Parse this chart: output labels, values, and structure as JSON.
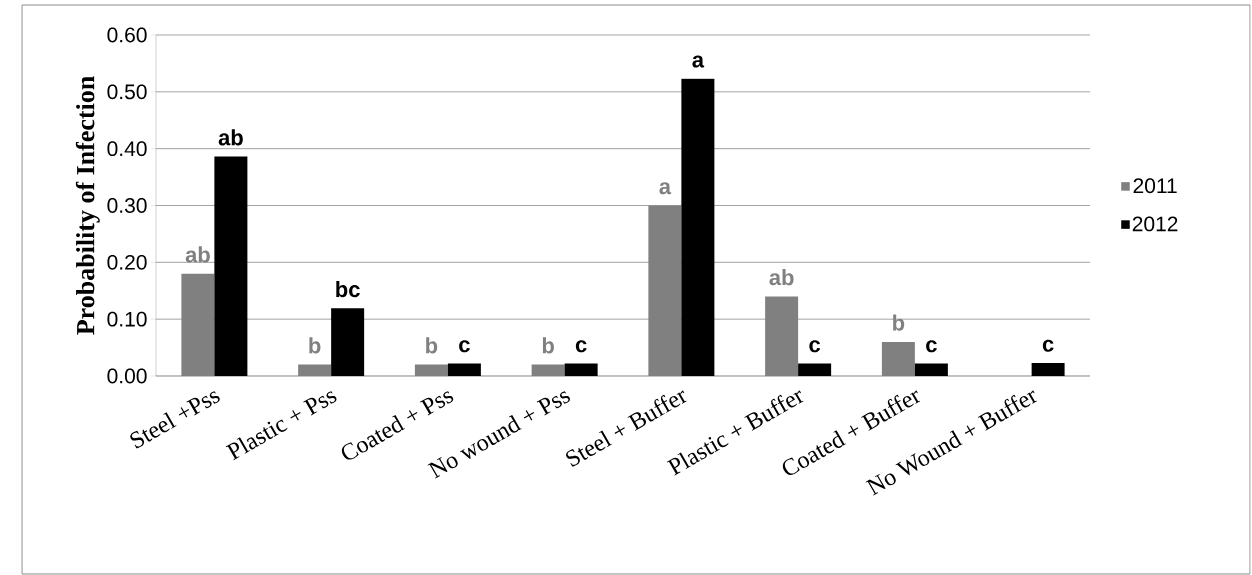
{
  "chart_data": {
    "type": "bar",
    "ylabel": "Probability of Infection",
    "categories": [
      "Steel +Pss",
      "Plastic + Pss",
      "Coated + Pss",
      "No wound + Pss",
      "Steel + Buffer",
      "Plastic + Buffer",
      "Coated + Buffer",
      "No Wound + Buffer"
    ],
    "series": [
      {
        "name": "2011",
        "color": "#808080",
        "values": [
          0.18,
          0.02,
          0.02,
          0.02,
          0.3,
          0.14,
          0.06,
          0
        ],
        "value_labels": [
          "ab",
          "b",
          "b",
          "b",
          "a",
          "ab",
          "b",
          null
        ]
      },
      {
        "name": "2012",
        "color": "#000000",
        "values": [
          0.386,
          0.119,
          0.022,
          0.022,
          0.523,
          0.022,
          0.022,
          0.023
        ],
        "value_labels": [
          "ab",
          "bc",
          "c",
          "c",
          "a",
          "c",
          "c",
          "c"
        ]
      }
    ],
    "ylim": [
      0,
      0.6
    ],
    "yticks": [
      {
        "value": 0,
        "label": "0.00"
      },
      {
        "value": 0.1,
        "label": "0.10"
      },
      {
        "value": 0.2,
        "label": "0.20"
      },
      {
        "value": 0.3,
        "label": "0.30"
      },
      {
        "value": 0.4,
        "label": "0.40"
      },
      {
        "value": 0.5,
        "label": "0.50"
      },
      {
        "value": 0.6,
        "label": "0.60"
      }
    ],
    "grid": "y",
    "legend": "right"
  }
}
